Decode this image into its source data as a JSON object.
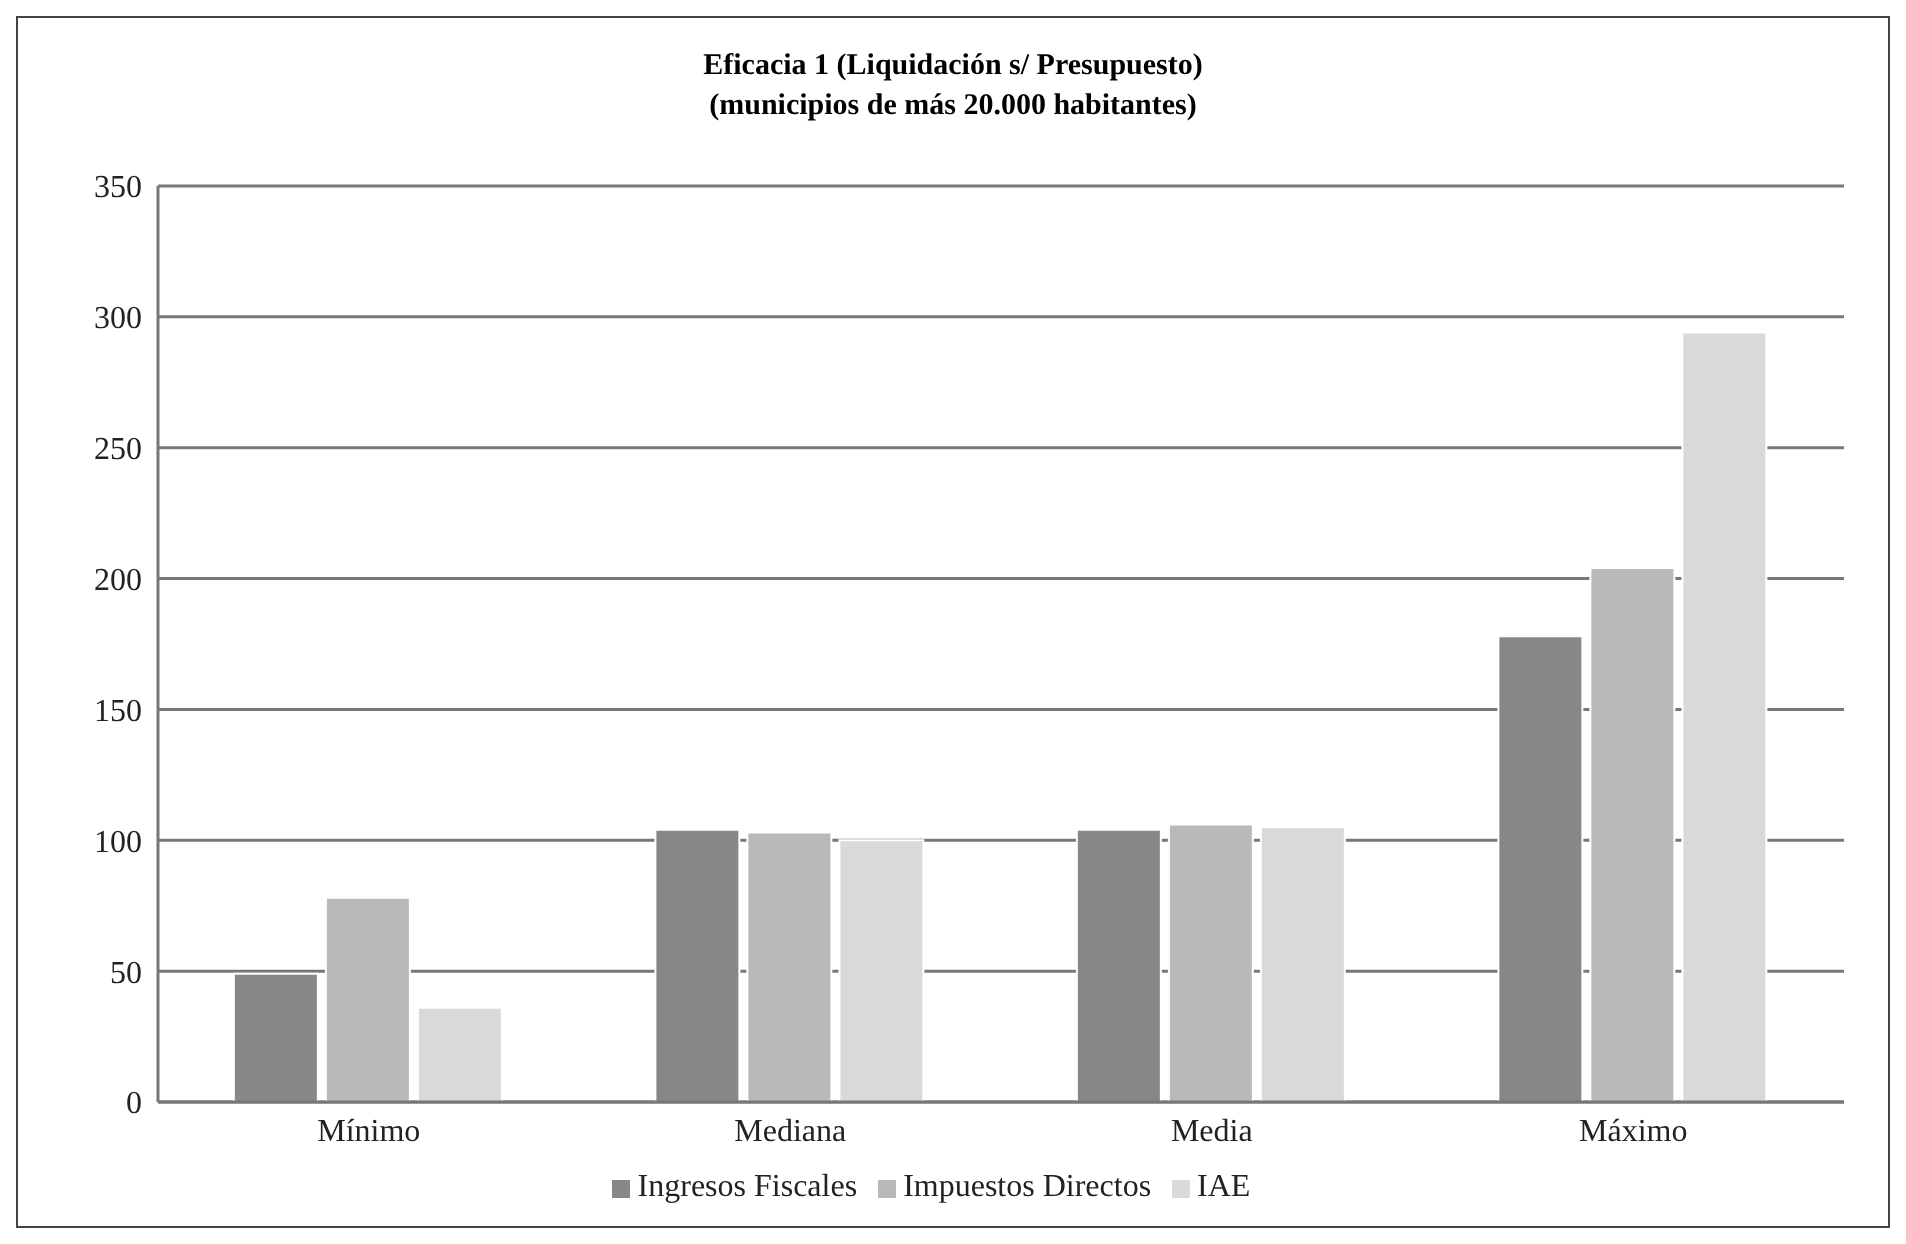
{
  "chart_data": {
    "type": "bar",
    "title": "Eficacia 1 (Liquidación s/ Presupuesto)",
    "subtitle": "(municipios de más 20.000 habitantes)",
    "categories": [
      "Mínimo",
      "Mediana",
      "Media",
      "Máximo"
    ],
    "series": [
      {
        "name": "Ingresos Fiscales",
        "color": "#878787",
        "values": [
          49,
          104,
          104,
          178
        ]
      },
      {
        "name": "Impuestos Directos",
        "color": "#b9b9b9",
        "values": [
          78,
          103,
          106,
          204
        ]
      },
      {
        "name": "IAE",
        "color": "#d9d9d9",
        "values": [
          36,
          100,
          105,
          294
        ]
      }
    ],
    "ylim": [
      0,
      350
    ],
    "yticks": [
      0,
      50,
      100,
      150,
      200,
      250,
      300,
      350
    ],
    "grid": "y",
    "legend": "bottom"
  }
}
